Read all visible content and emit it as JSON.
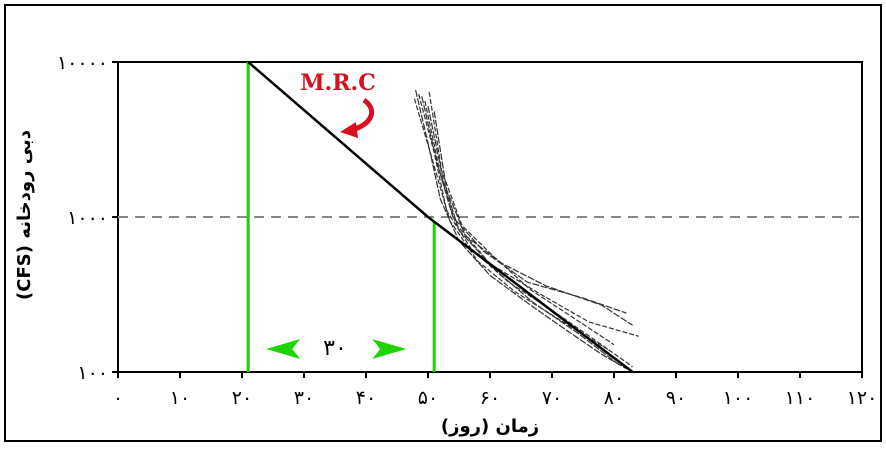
{
  "chart_data": {
    "type": "line",
    "xlabel": "زمان (روز)",
    "ylabel": "دبی رودخانه (CFS)",
    "y_scale": "log",
    "xlim": [
      0,
      120
    ],
    "ylim": [
      100,
      10000
    ],
    "x_ticks": [
      0,
      10,
      20,
      30,
      40,
      50,
      60,
      70,
      80,
      90,
      100,
      110,
      120
    ],
    "x_tick_labels": [
      "۰",
      "۱۰",
      "۲۰",
      "۳۰",
      "۴۰",
      "۵۰",
      "۶۰",
      "۷۰",
      "۸۰",
      "۹۰",
      "۱۰۰",
      "۱۱۰",
      "۱۲۰"
    ],
    "y_ticks": [
      100,
      1000,
      10000
    ],
    "y_tick_labels": [
      "۱۰۰",
      "۱۰۰۰",
      "۱۰۰۰۰"
    ],
    "grid": "dashed horizontal line at 1000",
    "mrc": {
      "label": "M.R.C",
      "points": [
        [
          21,
          10000
        ],
        [
          50,
          1000
        ],
        [
          83,
          100
        ]
      ]
    },
    "recession_curves": [
      [
        [
          48,
          6600
        ],
        [
          50,
          3000
        ],
        [
          52,
          1300
        ],
        [
          55,
          700
        ],
        [
          60,
          420
        ],
        [
          66,
          280
        ],
        [
          72,
          190
        ],
        [
          78,
          130
        ],
        [
          82,
          105
        ]
      ],
      [
        [
          48.5,
          6200
        ],
        [
          51,
          2600
        ],
        [
          53,
          1100
        ],
        [
          57,
          620
        ],
        [
          63,
          380
        ],
        [
          70,
          250
        ],
        [
          77,
          160
        ],
        [
          83,
          108
        ]
      ],
      [
        [
          49,
          6000
        ],
        [
          51.5,
          2200
        ],
        [
          54,
          1000
        ],
        [
          59,
          600
        ],
        [
          66,
          380
        ],
        [
          75,
          300
        ],
        [
          82,
          240
        ]
      ],
      [
        [
          49.5,
          5600
        ],
        [
          52,
          1900
        ],
        [
          54.5,
          900
        ],
        [
          60,
          500
        ],
        [
          68,
          320
        ],
        [
          76,
          210
        ],
        [
          84,
          170
        ]
      ],
      [
        [
          50,
          5200
        ],
        [
          52.5,
          1700
        ],
        [
          55,
          820
        ],
        [
          61,
          450
        ],
        [
          67,
          280
        ],
        [
          74,
          180
        ],
        [
          81,
          110
        ]
      ],
      [
        [
          47.8,
          5800
        ],
        [
          50.5,
          2500
        ],
        [
          53.5,
          950
        ],
        [
          58,
          520
        ],
        [
          64,
          330
        ],
        [
          71,
          220
        ],
        [
          79,
          140
        ]
      ],
      [
        [
          51,
          4800
        ],
        [
          53,
          1500
        ],
        [
          56,
          760
        ],
        [
          62,
          500
        ],
        [
          69,
          360
        ],
        [
          78,
          270
        ],
        [
          83,
          200
        ]
      ],
      [
        [
          50.2,
          6400
        ],
        [
          52.2,
          2000
        ],
        [
          55.5,
          880
        ],
        [
          60.5,
          560
        ],
        [
          66.5,
          340
        ],
        [
          73,
          230
        ],
        [
          80,
          150
        ]
      ]
    ],
    "markers": [
      {
        "x": 21,
        "color": "#1ed400"
      },
      {
        "x": 51,
        "color": "#1ed400"
      }
    ],
    "interval": {
      "from": 21,
      "to": 51,
      "label": "۳۰",
      "color": "#1ed400"
    },
    "colors": {
      "annotation": "#d8101e",
      "marker": "#1ed400",
      "line": "#000000",
      "grid": "#888888"
    }
  }
}
